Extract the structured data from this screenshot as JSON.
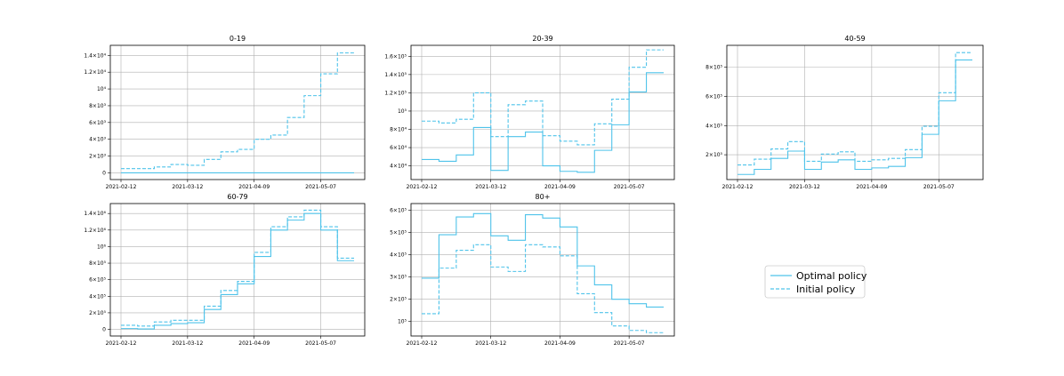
{
  "colors": {
    "series": "#4fc3ea",
    "grid": "#b0b0b0",
    "frame": "#000000"
  },
  "legend": {
    "placement": "lower-right",
    "entries": [
      {
        "name": "Optimal policy",
        "style": "solid"
      },
      {
        "name": "Initial policy",
        "style": "dashed"
      }
    ]
  },
  "chart_data": [
    {
      "type": "line",
      "title": "0-19",
      "xlabel": "",
      "ylabel": "",
      "x_ticks": [
        "2021-02-12",
        "2021-03-12",
        "2021-04-09",
        "2021-05-07"
      ],
      "xlim": [
        "2021-02-12",
        "2021-05-21"
      ],
      "ylim": [
        -800,
        15200
      ],
      "y_ticks": [
        {
          "value": 0,
          "label": "0"
        },
        {
          "value": 2000,
          "label": "2×10³"
        },
        {
          "value": 4000,
          "label": "4×10³"
        },
        {
          "value": 6000,
          "label": "6×10³"
        },
        {
          "value": 8000,
          "label": "8×10³"
        },
        {
          "value": 10000,
          "label": "10⁴"
        },
        {
          "value": 12000,
          "label": "1.2×10⁴"
        },
        {
          "value": 14000,
          "label": "1.4×10⁴"
        }
      ],
      "grid": true,
      "series": [
        {
          "name": "Optimal policy",
          "style": "solid",
          "x": [
            "2021-02-12",
            "2021-05-21"
          ],
          "y": [
            0,
            0
          ]
        },
        {
          "name": "Initial policy",
          "style": "dashed",
          "x": [
            "2021-02-12",
            "2021-02-19",
            "2021-02-26",
            "2021-03-05",
            "2021-03-12",
            "2021-03-19",
            "2021-03-26",
            "2021-04-02",
            "2021-04-09",
            "2021-04-16",
            "2021-04-23",
            "2021-04-30",
            "2021-05-07",
            "2021-05-14",
            "2021-05-21"
          ],
          "y": [
            500,
            500,
            700,
            1000,
            900,
            1600,
            2500,
            2800,
            4000,
            4500,
            6600,
            9200,
            11800,
            14300,
            14300
          ]
        }
      ]
    },
    {
      "type": "line",
      "title": "20-39",
      "xlabel": "",
      "ylabel": "",
      "x_ticks": [
        "2021-02-12",
        "2021-03-12",
        "2021-04-09",
        "2021-05-07"
      ],
      "xlim": [
        "2021-02-12",
        "2021-05-21"
      ],
      "ylim": [
        25000,
        172000
      ],
      "y_ticks": [
        {
          "value": 40000,
          "label": "4×10⁴"
        },
        {
          "value": 60000,
          "label": "6×10⁴"
        },
        {
          "value": 80000,
          "label": "8×10⁴"
        },
        {
          "value": 100000,
          "label": "10⁵"
        },
        {
          "value": 120000,
          "label": "1.2×10⁵"
        },
        {
          "value": 140000,
          "label": "1.4×10⁵"
        },
        {
          "value": 160000,
          "label": "1.6×10⁵"
        }
      ],
      "grid": true,
      "series": [
        {
          "name": "Optimal policy",
          "style": "solid",
          "x": [
            "2021-02-12",
            "2021-02-19",
            "2021-02-26",
            "2021-03-05",
            "2021-03-12",
            "2021-03-19",
            "2021-03-26",
            "2021-04-02",
            "2021-04-09",
            "2021-04-16",
            "2021-04-23",
            "2021-04-30",
            "2021-05-07",
            "2021-05-14",
            "2021-05-21"
          ],
          "y": [
            47000,
            45000,
            52000,
            82000,
            35000,
            72000,
            77000,
            40000,
            34000,
            33000,
            57000,
            85000,
            121000,
            142000,
            142000
          ]
        },
        {
          "name": "Initial policy",
          "style": "dashed",
          "x": [
            "2021-02-12",
            "2021-02-19",
            "2021-02-26",
            "2021-03-05",
            "2021-03-12",
            "2021-03-19",
            "2021-03-26",
            "2021-04-02",
            "2021-04-09",
            "2021-04-16",
            "2021-04-23",
            "2021-04-30",
            "2021-05-07",
            "2021-05-14",
            "2021-05-21"
          ],
          "y": [
            89000,
            87000,
            91000,
            120000,
            72000,
            107000,
            111000,
            73000,
            67000,
            63000,
            86000,
            113000,
            148000,
            167000,
            167000
          ]
        }
      ]
    },
    {
      "type": "line",
      "title": "40-59",
      "xlabel": "",
      "ylabel": "",
      "x_ticks": [
        "2021-02-12",
        "2021-03-12",
        "2021-04-09",
        "2021-05-07"
      ],
      "xlim": [
        "2021-02-12",
        "2021-05-21"
      ],
      "ylim": [
        30000,
        950000
      ],
      "y_ticks": [
        {
          "value": 200000,
          "label": "2×10⁵"
        },
        {
          "value": 400000,
          "label": "4×10⁵"
        },
        {
          "value": 600000,
          "label": "6×10⁵"
        },
        {
          "value": 800000,
          "label": "8×10⁵"
        }
      ],
      "grid": true,
      "series": [
        {
          "name": "Optimal policy",
          "style": "solid",
          "x": [
            "2021-02-12",
            "2021-02-19",
            "2021-02-26",
            "2021-03-05",
            "2021-03-12",
            "2021-03-19",
            "2021-03-26",
            "2021-04-02",
            "2021-04-09",
            "2021-04-16",
            "2021-04-23",
            "2021-04-30",
            "2021-05-07",
            "2021-05-14",
            "2021-05-21"
          ],
          "y": [
            65000,
            100000,
            175000,
            225000,
            100000,
            150000,
            165000,
            100000,
            110000,
            120000,
            180000,
            340000,
            570000,
            850000,
            850000
          ]
        },
        {
          "name": "Initial policy",
          "style": "dashed",
          "x": [
            "2021-02-12",
            "2021-02-19",
            "2021-02-26",
            "2021-03-05",
            "2021-03-12",
            "2021-03-19",
            "2021-03-26",
            "2021-04-02",
            "2021-04-09",
            "2021-04-16",
            "2021-04-23",
            "2021-04-30",
            "2021-05-07",
            "2021-05-14",
            "2021-05-21"
          ],
          "y": [
            130000,
            170000,
            240000,
            290000,
            155000,
            205000,
            220000,
            155000,
            165000,
            175000,
            235000,
            395000,
            625000,
            900000,
            900000
          ]
        }
      ]
    },
    {
      "type": "line",
      "title": "60-79",
      "xlabel": "",
      "ylabel": "",
      "x_ticks": [
        "2021-02-12",
        "2021-03-12",
        "2021-04-09",
        "2021-05-07"
      ],
      "xlim": [
        "2021-02-12",
        "2021-05-21"
      ],
      "ylim": [
        -80000,
        1520000
      ],
      "y_ticks": [
        {
          "value": 0,
          "label": "0"
        },
        {
          "value": 200000,
          "label": "2×10⁵"
        },
        {
          "value": 400000,
          "label": "4×10⁵"
        },
        {
          "value": 600000,
          "label": "6×10⁵"
        },
        {
          "value": 800000,
          "label": "8×10⁵"
        },
        {
          "value": 1000000,
          "label": "10⁶"
        },
        {
          "value": 1200000,
          "label": "1.2×10⁶"
        },
        {
          "value": 1400000,
          "label": "1.4×10⁶"
        }
      ],
      "grid": true,
      "series": [
        {
          "name": "Optimal policy",
          "style": "solid",
          "x": [
            "2021-02-12",
            "2021-02-19",
            "2021-02-26",
            "2021-03-05",
            "2021-03-12",
            "2021-03-19",
            "2021-03-26",
            "2021-04-02",
            "2021-04-09",
            "2021-04-16",
            "2021-04-23",
            "2021-04-30",
            "2021-05-07",
            "2021-05-14",
            "2021-05-21"
          ],
          "y": [
            10000,
            5000,
            50000,
            70000,
            80000,
            240000,
            420000,
            550000,
            880000,
            1200000,
            1320000,
            1400000,
            1200000,
            830000,
            830000
          ]
        },
        {
          "name": "Initial policy",
          "style": "dashed",
          "x": [
            "2021-02-12",
            "2021-02-19",
            "2021-02-26",
            "2021-03-05",
            "2021-03-12",
            "2021-03-19",
            "2021-03-26",
            "2021-04-02",
            "2021-04-09",
            "2021-04-16",
            "2021-04-23",
            "2021-04-30",
            "2021-05-07",
            "2021-05-14",
            "2021-05-21"
          ],
          "y": [
            50000,
            40000,
            90000,
            110000,
            110000,
            280000,
            470000,
            580000,
            930000,
            1240000,
            1360000,
            1440000,
            1240000,
            860000,
            860000
          ]
        }
      ]
    },
    {
      "type": "line",
      "title": "80+",
      "xlabel": "",
      "ylabel": "",
      "x_ticks": [
        "2021-02-12",
        "2021-03-12",
        "2021-04-09",
        "2021-05-07"
      ],
      "xlim": [
        "2021-02-12",
        "2021-05-21"
      ],
      "ylim": [
        35000,
        630000
      ],
      "y_ticks": [
        {
          "value": 100000,
          "label": "10⁵"
        },
        {
          "value": 200000,
          "label": "2×10⁵"
        },
        {
          "value": 300000,
          "label": "3×10⁵"
        },
        {
          "value": 400000,
          "label": "4×10⁵"
        },
        {
          "value": 500000,
          "label": "5×10⁵"
        },
        {
          "value": 600000,
          "label": "6×10⁵"
        }
      ],
      "grid": true,
      "series": [
        {
          "name": "Optimal policy",
          "style": "solid",
          "x": [
            "2021-02-12",
            "2021-02-19",
            "2021-02-26",
            "2021-03-05",
            "2021-03-12",
            "2021-03-19",
            "2021-03-26",
            "2021-04-02",
            "2021-04-09",
            "2021-04-16",
            "2021-04-23",
            "2021-04-30",
            "2021-05-07",
            "2021-05-14",
            "2021-05-21"
          ],
          "y": [
            295000,
            490000,
            570000,
            585000,
            485000,
            465000,
            580000,
            565000,
            525000,
            350000,
            265000,
            200000,
            180000,
            165000,
            165000
          ]
        },
        {
          "name": "Initial policy",
          "style": "dashed",
          "x": [
            "2021-02-12",
            "2021-02-19",
            "2021-02-26",
            "2021-03-05",
            "2021-03-12",
            "2021-03-19",
            "2021-03-26",
            "2021-04-02",
            "2021-04-09",
            "2021-04-16",
            "2021-04-23",
            "2021-04-30",
            "2021-05-07",
            "2021-05-14",
            "2021-05-21"
          ],
          "y": [
            135000,
            340000,
            420000,
            445000,
            345000,
            325000,
            445000,
            435000,
            395000,
            225000,
            140000,
            80000,
            60000,
            50000,
            50000
          ]
        }
      ]
    }
  ]
}
